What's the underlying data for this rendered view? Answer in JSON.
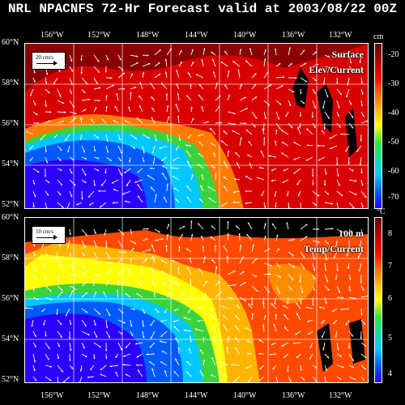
{
  "title": "NRL NPACNFS 72-Hr Forecast valid at 2003/08/22 00Z",
  "lon_ticks": [
    "156°W",
    "152°W",
    "148°W",
    "144°W",
    "140°W",
    "136°W",
    "132°W"
  ],
  "lat_ticks": [
    "60°N",
    "58°N",
    "56°N",
    "54°N",
    "52°N"
  ],
  "top_panel": {
    "label_line1": "Surface",
    "label_line2": "Elev/Current",
    "scale_label": "20 cm/s",
    "unit": "cm",
    "colorbar_ticks": [
      "-20",
      "-30",
      "-40",
      "-50",
      "-60",
      "-70"
    ]
  },
  "bottom_panel": {
    "label_line1": "100 m",
    "label_line2": "Temp/Current",
    "scale_label": "10 cm/s",
    "unit": "°C",
    "colorbar_ticks": [
      "8",
      "7",
      "6",
      "5",
      "4"
    ]
  },
  "colors": {
    "colormap": [
      "#2a00ff",
      "#005aff",
      "#00c8ff",
      "#00e6a0",
      "#3ce03c",
      "#ffff00",
      "#ffb400",
      "#ff6000",
      "#ff0000",
      "#b40000",
      "#640000"
    ],
    "land": "#000000"
  }
}
